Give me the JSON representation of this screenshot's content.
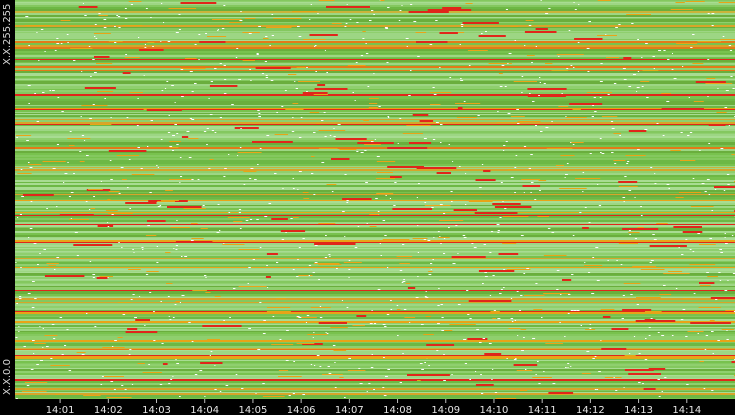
{
  "chart_data": {
    "type": "heatmap",
    "title": "",
    "xlabel": "",
    "ylabel": "",
    "y_labels": [
      "X.X.255.255",
      "X.X.0.0"
    ],
    "x_ticks": [
      "14:01",
      "14:02",
      "14:03",
      "14:04",
      "14:05",
      "14:06",
      "14:07",
      "14:08",
      "14:09",
      "14:10",
      "14:11",
      "14:12",
      "14:13",
      "14:14"
    ],
    "x_range": [
      "14:00:30",
      "14:15:00"
    ],
    "color_scale": {
      "low": "#ffffff",
      "light": "#a8dc92",
      "mid": "#78c24e",
      "high": "#e8a417",
      "max": "#e0261a"
    },
    "background": "#000000"
  }
}
